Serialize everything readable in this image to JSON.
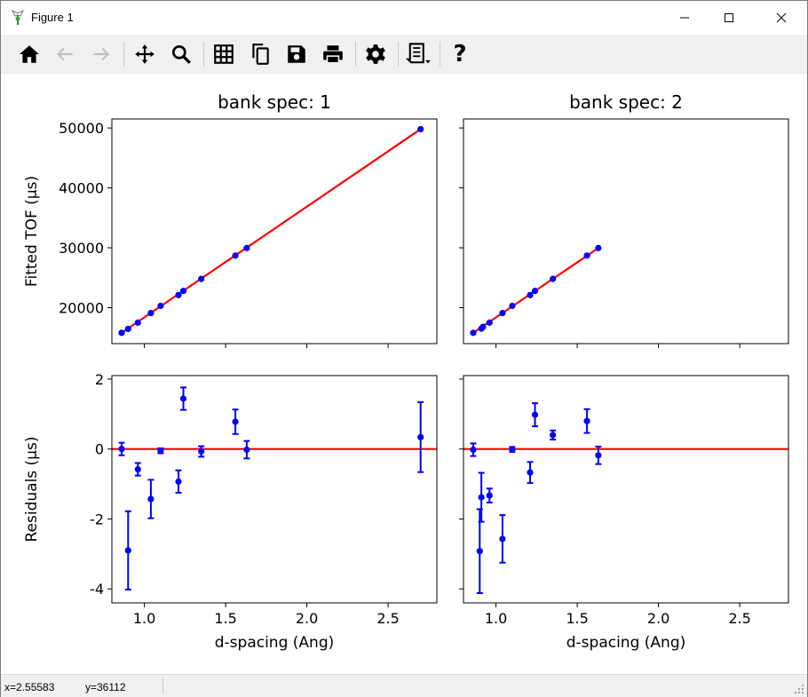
{
  "window": {
    "title": "Figure 1"
  },
  "toolbar": {
    "buttons": [
      {
        "name": "home-button",
        "icon": "home-icon",
        "enabled": true
      },
      {
        "name": "back-button",
        "icon": "arrow-left-icon",
        "enabled": false
      },
      {
        "name": "forward-button",
        "icon": "arrow-right-icon",
        "enabled": false
      },
      {
        "name": "pan-button",
        "icon": "move-icon",
        "enabled": true
      },
      {
        "name": "zoom-button",
        "icon": "magnifier-icon",
        "enabled": true
      },
      {
        "name": "grid-button",
        "icon": "grid-icon",
        "enabled": true
      },
      {
        "name": "copy-button",
        "icon": "copy-icon",
        "enabled": true
      },
      {
        "name": "save-button",
        "icon": "floppy-icon",
        "enabled": true
      },
      {
        "name": "print-button",
        "icon": "printer-icon",
        "enabled": true
      },
      {
        "name": "settings-button",
        "icon": "gear-icon",
        "enabled": true
      },
      {
        "name": "script-button",
        "icon": "script-icon",
        "enabled": true
      },
      {
        "name": "help-button",
        "icon": "question-icon",
        "enabled": true
      }
    ],
    "help_glyph": "?"
  },
  "status": {
    "x": "x=2.55583",
    "y": "y=36112"
  },
  "chart_data": [
    {
      "type": "scatter",
      "title": "bank spec: 1",
      "xlabel": "",
      "ylabel": "Fitted TOF (µs)",
      "xlim": [
        0.8,
        2.8
      ],
      "ylim": [
        14000,
        51500
      ],
      "yticks": [
        20000,
        30000,
        40000,
        50000
      ],
      "xticks": [
        1.0,
        1.5,
        2.0,
        2.5
      ],
      "x": [
        0.86,
        0.9,
        0.96,
        1.04,
        1.1,
        1.21,
        1.24,
        1.35,
        1.56,
        1.63,
        2.7
      ],
      "y": [
        15800,
        16450,
        17500,
        19100,
        20300,
        22100,
        22800,
        24800,
        28700,
        29950,
        49800
      ],
      "fit": [
        [
          0.86,
          15800
        ],
        [
          2.7,
          49800
        ]
      ],
      "colors": {
        "points": "#0000ff",
        "fit": "#ff0000"
      }
    },
    {
      "type": "scatter",
      "title": "bank spec: 2",
      "xlabel": "",
      "ylabel": "",
      "xlim": [
        0.8,
        2.8
      ],
      "ylim": [
        14000,
        51500
      ],
      "yticks": [
        20000,
        30000,
        40000,
        50000
      ],
      "xticks": [
        1.0,
        1.5,
        2.0,
        2.5
      ],
      "x": [
        0.86,
        0.91,
        0.92,
        0.96,
        1.04,
        1.1,
        1.21,
        1.24,
        1.35,
        1.56,
        1.63
      ],
      "y": [
        15800,
        16500,
        16800,
        17500,
        19100,
        20300,
        22100,
        22800,
        24800,
        28700,
        29950
      ],
      "fit": [
        [
          0.86,
          15800
        ],
        [
          1.63,
          29950
        ]
      ],
      "colors": {
        "points": "#0000ff",
        "fit": "#ff0000"
      }
    },
    {
      "type": "errorbar",
      "title": "",
      "xlabel": "d-spacing (Ang)",
      "ylabel": "Residuals (µs)",
      "xlim": [
        0.8,
        2.8
      ],
      "ylim": [
        -4.4,
        2.1
      ],
      "yticks": [
        -4,
        -2,
        0,
        2
      ],
      "xticks": [
        1.0,
        1.5,
        2.0,
        2.5
      ],
      "x": [
        0.86,
        0.9,
        0.96,
        1.04,
        1.1,
        1.21,
        1.24,
        1.35,
        1.56,
        1.63,
        2.7
      ],
      "y": [
        0.0,
        -2.9,
        -0.58,
        -1.43,
        -0.05,
        -0.93,
        1.44,
        -0.07,
        0.78,
        -0.02,
        0.34
      ],
      "yerr": [
        0.18,
        1.12,
        0.18,
        0.55,
        0.07,
        0.32,
        0.32,
        0.15,
        0.35,
        0.25,
        1.0
      ],
      "hline": 0,
      "colors": {
        "points": "#0000ff",
        "fit": "#ff0000"
      }
    },
    {
      "type": "errorbar",
      "title": "",
      "xlabel": "d-spacing (Ang)",
      "ylabel": "",
      "xlim": [
        0.8,
        2.8
      ],
      "ylim": [
        -4.4,
        2.1
      ],
      "yticks": [
        -4,
        -2,
        0,
        2
      ],
      "xticks": [
        1.0,
        1.5,
        2.0,
        2.5
      ],
      "x": [
        0.86,
        0.9,
        0.91,
        0.96,
        1.04,
        1.1,
        1.21,
        1.24,
        1.35,
        1.56,
        1.63
      ],
      "y": [
        -0.02,
        -2.92,
        -1.38,
        -1.33,
        -2.57,
        -0.01,
        -0.67,
        0.98,
        0.4,
        0.8,
        -0.18
      ],
      "yerr": [
        0.18,
        1.2,
        0.7,
        0.2,
        0.68,
        0.07,
        0.3,
        0.33,
        0.13,
        0.34,
        0.25
      ],
      "hline": 0,
      "colors": {
        "points": "#0000ff",
        "fit": "#ff0000"
      }
    }
  ]
}
